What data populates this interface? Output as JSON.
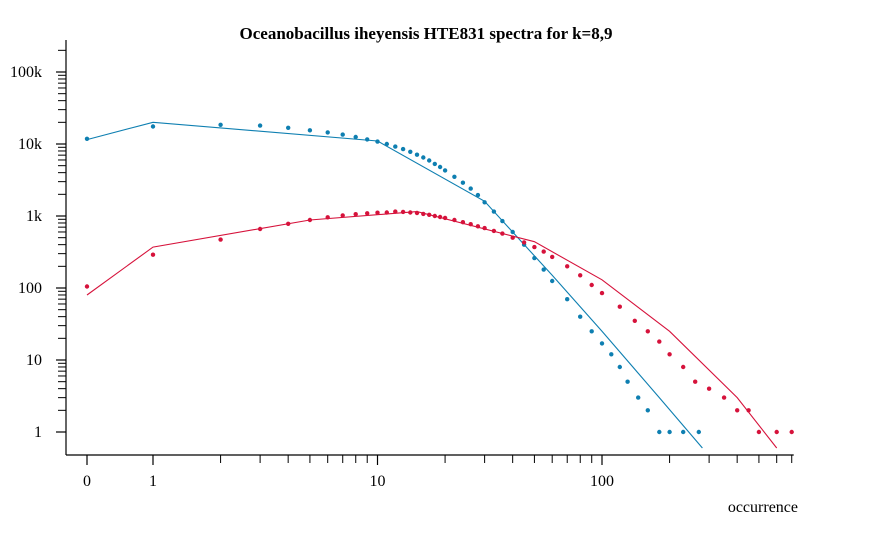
{
  "chart_data": {
    "type": "scatter",
    "title": "Oceanobacillus iheyensis HTE831 spectra for k=8,9",
    "xlabel": "occurrence",
    "ylabel": "",
    "x_scale": "log (0 shown at left)",
    "y_scale": "log",
    "xlim": [
      0,
      700
    ],
    "ylim": [
      0.5,
      200000
    ],
    "x_ticks": [
      {
        "value": 0,
        "label": "0"
      },
      {
        "value": 1,
        "label": "1"
      },
      {
        "value": 10,
        "label": "10"
      },
      {
        "value": 100,
        "label": "100"
      }
    ],
    "y_ticks": [
      {
        "value": 1,
        "label": "1"
      },
      {
        "value": 10,
        "label": "10"
      },
      {
        "value": 100,
        "label": "100"
      },
      {
        "value": 1000,
        "label": "1k"
      },
      {
        "value": 10000,
        "label": "10k"
      },
      {
        "value": 100000,
        "label": "100k"
      }
    ],
    "grid": false,
    "legend": "none",
    "series": [
      {
        "color": "#0e7fb1",
        "points": [
          [
            0,
            11800
          ],
          [
            1,
            17500
          ],
          [
            2,
            18500
          ],
          [
            3,
            18000
          ],
          [
            4,
            16800
          ],
          [
            5,
            15500
          ],
          [
            6,
            14500
          ],
          [
            7,
            13500
          ],
          [
            8,
            12500
          ],
          [
            9,
            11600
          ],
          [
            10,
            10800
          ],
          [
            11,
            10000
          ],
          [
            12,
            9200
          ],
          [
            13,
            8500
          ],
          [
            14,
            7800
          ],
          [
            15,
            7100
          ],
          [
            16,
            6500
          ],
          [
            17,
            5900
          ],
          [
            18,
            5300
          ],
          [
            19,
            4800
          ],
          [
            20,
            4300
          ],
          [
            22,
            3500
          ],
          [
            24,
            2900
          ],
          [
            26,
            2400
          ],
          [
            28,
            1950
          ],
          [
            30,
            1550
          ],
          [
            33,
            1150
          ],
          [
            36,
            850
          ],
          [
            40,
            600
          ],
          [
            45,
            400
          ],
          [
            50,
            260
          ],
          [
            55,
            180
          ],
          [
            60,
            125
          ],
          [
            70,
            70
          ],
          [
            80,
            40
          ],
          [
            90,
            25
          ],
          [
            100,
            17
          ],
          [
            110,
            12
          ],
          [
            120,
            8
          ],
          [
            130,
            5
          ],
          [
            145,
            3
          ],
          [
            160,
            2
          ],
          [
            180,
            1
          ],
          [
            200,
            1
          ],
          [
            230,
            1
          ],
          [
            270,
            1
          ]
        ],
        "fit": [
          [
            0,
            11500
          ],
          [
            1,
            20000
          ],
          [
            10,
            11000
          ],
          [
            30,
            1600
          ],
          [
            60,
            150
          ],
          [
            100,
            25
          ],
          [
            180,
            3
          ],
          [
            280,
            0.6
          ]
        ]
      },
      {
        "color": "#d6123b",
        "points": [
          [
            0,
            105
          ],
          [
            1,
            290
          ],
          [
            2,
            470
          ],
          [
            3,
            660
          ],
          [
            4,
            780
          ],
          [
            5,
            880
          ],
          [
            6,
            960
          ],
          [
            7,
            1020
          ],
          [
            8,
            1060
          ],
          [
            9,
            1090
          ],
          [
            10,
            1110
          ],
          [
            11,
            1120
          ],
          [
            12,
            1150
          ],
          [
            13,
            1140
          ],
          [
            14,
            1120
          ],
          [
            15,
            1100
          ],
          [
            16,
            1070
          ],
          [
            17,
            1040
          ],
          [
            18,
            1000
          ],
          [
            19,
            970
          ],
          [
            20,
            940
          ],
          [
            22,
            880
          ],
          [
            24,
            820
          ],
          [
            26,
            770
          ],
          [
            28,
            720
          ],
          [
            30,
            680
          ],
          [
            33,
            620
          ],
          [
            36,
            570
          ],
          [
            40,
            500
          ],
          [
            45,
            430
          ],
          [
            50,
            370
          ],
          [
            55,
            320
          ],
          [
            60,
            270
          ],
          [
            70,
            200
          ],
          [
            80,
            150
          ],
          [
            90,
            110
          ],
          [
            100,
            85
          ],
          [
            120,
            55
          ],
          [
            140,
            35
          ],
          [
            160,
            25
          ],
          [
            180,
            18
          ],
          [
            200,
            12
          ],
          [
            230,
            8
          ],
          [
            260,
            5
          ],
          [
            300,
            4
          ],
          [
            350,
            3
          ],
          [
            400,
            2
          ],
          [
            450,
            2
          ],
          [
            500,
            1
          ],
          [
            600,
            1
          ],
          [
            700,
            1
          ]
        ],
        "fit": [
          [
            0,
            80
          ],
          [
            1,
            370
          ],
          [
            5,
            880
          ],
          [
            15,
            1150
          ],
          [
            50,
            440
          ],
          [
            100,
            130
          ],
          [
            200,
            25
          ],
          [
            400,
            3
          ],
          [
            600,
            0.6
          ]
        ]
      }
    ]
  }
}
